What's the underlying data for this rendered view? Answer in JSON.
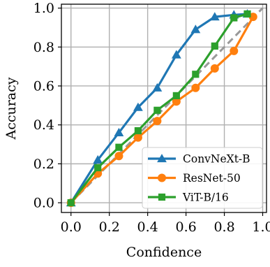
{
  "chart_data": {
    "type": "line",
    "title": "",
    "xlabel": "Confidence",
    "ylabel": "Accuracy",
    "xlim": [
      -0.05,
      1.02
    ],
    "ylim": [
      -0.05,
      1.02
    ],
    "x_ticks": [
      0.0,
      0.2,
      0.4,
      0.6,
      0.8,
      1.0
    ],
    "x_tick_labels": [
      "0.0",
      "0.2",
      "0.4",
      "0.6",
      "0.8",
      "1.0"
    ],
    "y_ticks": [
      0.0,
      0.2,
      0.4,
      0.6,
      0.8,
      1.0
    ],
    "y_tick_labels": [
      "0.0",
      "0.2",
      "0.4",
      "0.6",
      "0.8",
      "1.0"
    ],
    "grid": true,
    "legend_position": "bottom-right",
    "reference_line": {
      "x": [
        0,
        1
      ],
      "y": [
        0,
        1
      ],
      "style": "dashed",
      "color": "#999999"
    },
    "series": [
      {
        "name": "ConvNeXt-B",
        "color": "#1f77b4",
        "marker": "triangle",
        "x": [
          0.0,
          0.14,
          0.25,
          0.35,
          0.45,
          0.55,
          0.65,
          0.75,
          0.85,
          0.92
        ],
        "y": [
          0.0,
          0.22,
          0.36,
          0.49,
          0.59,
          0.76,
          0.89,
          0.955,
          0.965,
          0.97
        ]
      },
      {
        "name": "ResNet-50",
        "color": "#ff7f0e",
        "marker": "circle",
        "x": [
          0.0,
          0.14,
          0.25,
          0.35,
          0.45,
          0.55,
          0.65,
          0.75,
          0.85,
          0.95
        ],
        "y": [
          0.0,
          0.15,
          0.24,
          0.335,
          0.42,
          0.52,
          0.59,
          0.69,
          0.78,
          0.955
        ]
      },
      {
        "name": "ViT-B/16",
        "color": "#2ca02c",
        "marker": "square",
        "x": [
          0.0,
          0.14,
          0.25,
          0.35,
          0.45,
          0.55,
          0.65,
          0.75,
          0.85,
          0.92
        ],
        "y": [
          0.0,
          0.18,
          0.285,
          0.37,
          0.475,
          0.55,
          0.66,
          0.805,
          0.95,
          0.97
        ]
      }
    ]
  }
}
